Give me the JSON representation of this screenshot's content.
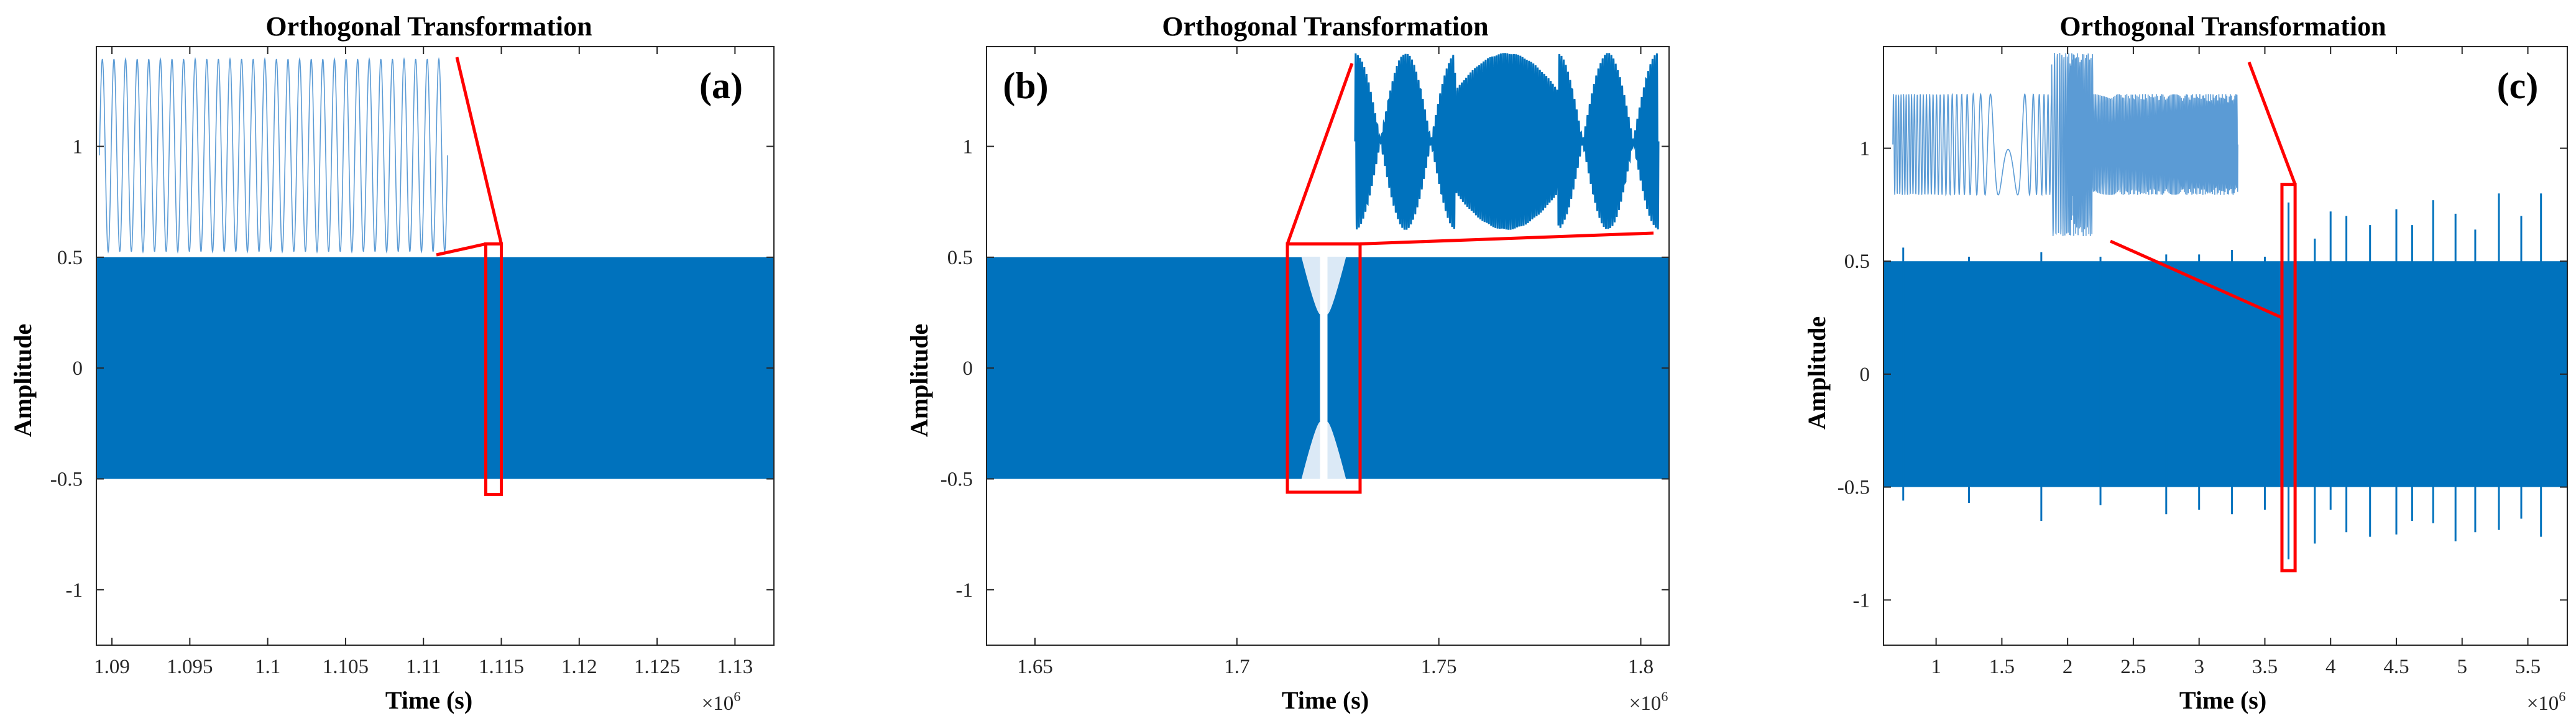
{
  "figure": {
    "signal_color": "#0072BD",
    "zoom_color": "#FF0000"
  },
  "chart_data": [
    {
      "type": "line",
      "panel_label": "(a)",
      "title": "Orthogonal Transformation",
      "xlabel": "Time (s)",
      "ylabel": "Amplitude",
      "x_exponent_base": "×10",
      "x_exponent_power": "6",
      "xlim": [
        1.089,
        1.1325
      ],
      "ylim": [
        -1.25,
        1.45
      ],
      "xticks": [
        1.09,
        1.095,
        1.1,
        1.105,
        1.11,
        1.115,
        1.12,
        1.125,
        1.13
      ],
      "xtick_labels": [
        "1.09",
        "1.095",
        "1.1",
        "1.105",
        "1.11",
        "1.115",
        "1.12",
        "1.125",
        "1.13"
      ],
      "yticks": [
        -1,
        -0.5,
        0,
        0.5,
        1
      ],
      "ytick_labels": [
        "-1",
        "-0.5",
        "0",
        "0.5",
        "1"
      ],
      "signal": {
        "x_start": 1.089,
        "x_end": 1.1325,
        "amplitude": 0.5
      },
      "spikes": [],
      "zoom_box": {
        "x": [
          1.114,
          1.115
        ],
        "y": [
          -0.57,
          0.56
        ]
      },
      "inset": {
        "kind": "sine",
        "cycles": 30
      },
      "notch": null
    },
    {
      "type": "line",
      "panel_label": "(b)",
      "title": "Orthogonal Transformation",
      "xlabel": "Time (s)",
      "ylabel": "Amplitude",
      "x_exponent_base": "×10",
      "x_exponent_power": "6",
      "xlim": [
        1.638,
        1.807
      ],
      "ylim": [
        -1.25,
        1.45
      ],
      "xticks": [
        1.65,
        1.7,
        1.75,
        1.8
      ],
      "xtick_labels": [
        "1.65",
        "1.7",
        "1.75",
        "1.8"
      ],
      "yticks": [
        -1,
        -0.5,
        0,
        0.5,
        1
      ],
      "ytick_labels": [
        "-1",
        "-0.5",
        "0",
        "0.5",
        "1"
      ],
      "signal": {
        "x_start": 1.638,
        "x_end": 1.807,
        "amplitude": 0.5
      },
      "spikes": [],
      "zoom_box": {
        "x": [
          1.7125,
          1.7305
        ],
        "y": [
          -0.56,
          0.56
        ]
      },
      "inset": {
        "kind": "beat"
      },
      "notch": {
        "x": [
          1.716,
          1.727
        ]
      }
    },
    {
      "type": "line",
      "panel_label": "(c)",
      "title": "Orthogonal Transformation",
      "xlabel": "Time (s)",
      "ylabel": "Amplitude",
      "x_exponent_base": "×10",
      "x_exponent_power": "6",
      "xlim": [
        0.6,
        5.8
      ],
      "ylim": [
        -1.2,
        1.45
      ],
      "xticks": [
        1,
        1.5,
        2,
        2.5,
        3,
        3.5,
        4,
        4.5,
        5,
        5.5
      ],
      "xtick_labels": [
        "1",
        "1.5",
        "2",
        "2.5",
        "3",
        "3.5",
        "4",
        "4.5",
        "5",
        "5.5"
      ],
      "yticks": [
        -1,
        -0.5,
        0,
        0.5,
        1
      ],
      "ytick_labels": [
        "-1",
        "-0.5",
        "0",
        "0.5",
        "1"
      ],
      "signal": {
        "x_start": 0.6,
        "x_end": 5.8,
        "amplitude": 0.5
      },
      "spikes": [
        {
          "x": 0.75,
          "top": 0.56,
          "bottom": -0.56
        },
        {
          "x": 1.25,
          "top": 0.52,
          "bottom": -0.57
        },
        {
          "x": 1.8,
          "top": 0.54,
          "bottom": -0.65
        },
        {
          "x": 2.25,
          "top": 0.52,
          "bottom": -0.58
        },
        {
          "x": 2.75,
          "top": 0.53,
          "bottom": -0.62
        },
        {
          "x": 3.0,
          "top": 0.53,
          "bottom": -0.6
        },
        {
          "x": 3.25,
          "top": 0.55,
          "bottom": -0.62
        },
        {
          "x": 3.5,
          "top": 0.52,
          "bottom": -0.6
        },
        {
          "x": 3.68,
          "top": 0.76,
          "bottom": -0.82
        },
        {
          "x": 3.88,
          "top": 0.6,
          "bottom": -0.75
        },
        {
          "x": 4.0,
          "top": 0.72,
          "bottom": -0.6
        },
        {
          "x": 4.12,
          "top": 0.7,
          "bottom": -0.7
        },
        {
          "x": 4.3,
          "top": 0.66,
          "bottom": -0.72
        },
        {
          "x": 4.5,
          "top": 0.73,
          "bottom": -0.71
        },
        {
          "x": 4.62,
          "top": 0.66,
          "bottom": -0.65
        },
        {
          "x": 4.78,
          "top": 0.77,
          "bottom": -0.66
        },
        {
          "x": 4.95,
          "top": 0.71,
          "bottom": -0.74
        },
        {
          "x": 5.1,
          "top": 0.64,
          "bottom": -0.7
        },
        {
          "x": 5.28,
          "top": 0.8,
          "bottom": -0.69
        },
        {
          "x": 5.45,
          "top": 0.7,
          "bottom": -0.64
        },
        {
          "x": 5.6,
          "top": 0.8,
          "bottom": -0.72
        }
      ],
      "zoom_box": {
        "x": [
          3.63,
          3.73
        ],
        "y": [
          -0.87,
          0.84
        ]
      },
      "inset": {
        "kind": "chirp"
      },
      "notch": null
    }
  ]
}
